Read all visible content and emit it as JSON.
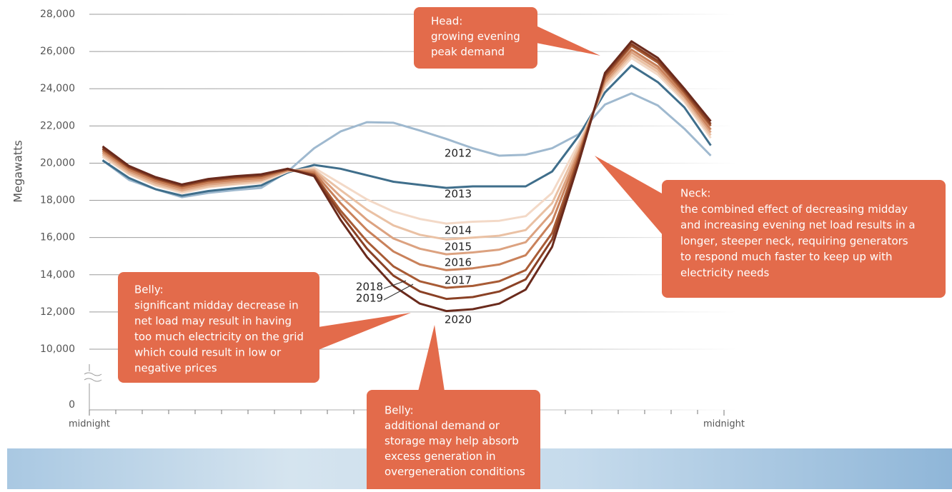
{
  "chart_data": {
    "type": "line",
    "y_label": "Megawatts",
    "ylim": [
      10000,
      28000
    ],
    "yticks": [
      0,
      {
        "value": 10000,
        "label": "10,000"
      },
      {
        "value": 12000,
        "label": "12,000"
      },
      {
        "value": 14000,
        "label": "14,000"
      },
      {
        "value": 16000,
        "label": "16,000"
      },
      {
        "value": 18000,
        "label": "18,000"
      },
      {
        "value": 20000,
        "label": "20,000"
      },
      {
        "value": 22000,
        "label": "22,000"
      },
      {
        "value": 24000,
        "label": "24,000"
      },
      {
        "value": 26000,
        "label": "26,000"
      },
      {
        "value": 28000,
        "label": "28,000"
      }
    ],
    "y_axis_break": true,
    "grid": true,
    "xlim": [
      0,
      24
    ],
    "xticks": [
      {
        "value": 0,
        "label": "midnight"
      },
      {
        "value": 24,
        "label": "midnight"
      }
    ],
    "minor_xticks": [
      1,
      2,
      3,
      4,
      5,
      6,
      7,
      8,
      9,
      10,
      11,
      12,
      13,
      14,
      15,
      16,
      17,
      18,
      19,
      20,
      21,
      22,
      23
    ],
    "x": [
      0.5,
      1.5,
      2.5,
      3.5,
      4.5,
      5.5,
      6.5,
      7.5,
      8.5,
      9.5,
      10.5,
      11.5,
      12.5,
      13.5,
      14.5,
      15.5,
      16.5,
      17.5,
      18.5,
      19.5,
      20.5,
      21.5,
      22.5,
      23.5
    ],
    "series": [
      {
        "name": "2012",
        "color": "#9fb9cf",
        "values": [
          20150,
          19100,
          18600,
          18170,
          18400,
          18550,
          18670,
          19550,
          20800,
          21700,
          22200,
          22170,
          21750,
          21300,
          20800,
          20400,
          20450,
          20800,
          21550,
          23150,
          23750,
          23100,
          21850,
          20400
        ]
      },
      {
        "name": "2013",
        "color": "#3f6e8b",
        "values": [
          20150,
          19200,
          18600,
          18250,
          18500,
          18650,
          18800,
          19500,
          19900,
          19700,
          19350,
          19000,
          18830,
          18670,
          18750,
          18750,
          18750,
          19550,
          21450,
          23800,
          25250,
          24350,
          23000,
          20950
        ]
      },
      {
        "name": "2014",
        "color": "#f3d9c7",
        "values": [
          20350,
          19400,
          18800,
          18400,
          18700,
          18850,
          18950,
          19550,
          19750,
          18900,
          18050,
          17400,
          17000,
          16750,
          16850,
          16900,
          17150,
          18400,
          21050,
          24100,
          25650,
          24750,
          23300,
          21350
        ]
      },
      {
        "name": "2015",
        "color": "#eac1a4",
        "values": [
          20450,
          19450,
          18850,
          18500,
          18750,
          18900,
          19050,
          19600,
          19650,
          18550,
          17500,
          16650,
          16150,
          15900,
          16000,
          16100,
          16400,
          17850,
          20850,
          24250,
          25800,
          24900,
          23400,
          21500
        ]
      },
      {
        "name": "2016",
        "color": "#dca280",
        "values": [
          20550,
          19550,
          18950,
          18550,
          18850,
          19000,
          19100,
          19600,
          19600,
          18200,
          16950,
          15950,
          15400,
          15100,
          15200,
          15350,
          15750,
          17350,
          20650,
          24350,
          25950,
          25050,
          23550,
          21650
        ]
      },
      {
        "name": "2017",
        "color": "#c9815a",
        "values": [
          20650,
          19650,
          19050,
          18650,
          18950,
          19100,
          19200,
          19650,
          19500,
          17850,
          16400,
          15250,
          14550,
          14250,
          14350,
          14550,
          15050,
          16850,
          20500,
          24500,
          26100,
          25200,
          23650,
          21800
        ]
      },
      {
        "name": "2018",
        "color": "#a85b35",
        "values": [
          20750,
          19750,
          19150,
          18750,
          19050,
          19200,
          19300,
          19650,
          19400,
          17450,
          15800,
          14450,
          13650,
          13300,
          13400,
          13650,
          14250,
          16250,
          20300,
          24650,
          26300,
          25400,
          23800,
          22000
        ]
      },
      {
        "name": "2019",
        "color": "#8a4125",
        "values": [
          20800,
          19800,
          19200,
          18800,
          19100,
          19250,
          19350,
          19700,
          19350,
          17250,
          15400,
          13950,
          13100,
          12700,
          12800,
          13100,
          13750,
          15900,
          20150,
          24750,
          26400,
          25500,
          23900,
          22100
        ]
      },
      {
        "name": "2020",
        "color": "#6a2a1c",
        "values": [
          20900,
          19850,
          19250,
          18850,
          19150,
          19300,
          19400,
          19700,
          19300,
          16950,
          14950,
          13400,
          12450,
          12050,
          12150,
          12450,
          13200,
          15500,
          20000,
          24850,
          26550,
          25650,
          24000,
          22250
        ]
      }
    ],
    "annotations": [
      {
        "title": "Head:",
        "lines": [
          "growing evening",
          "peak demand"
        ]
      },
      {
        "title": "Neck:",
        "lines": [
          "the combined effect of decreasing midday",
          "and increasing evening net load results in a",
          "longer, steeper neck, requiring generators",
          "to respond much faster to keep up with",
          "electricity needs"
        ]
      },
      {
        "title": "Belly:",
        "lines": [
          "significant midday decrease in",
          "net load may result in having",
          "too much electricity on the grid",
          "which could result in low or",
          "negative prices"
        ]
      },
      {
        "title": "Belly:",
        "lines": [
          "additional demand or",
          "storage may help absorb",
          "excess generation in",
          "overgeneration conditions"
        ]
      }
    ]
  }
}
